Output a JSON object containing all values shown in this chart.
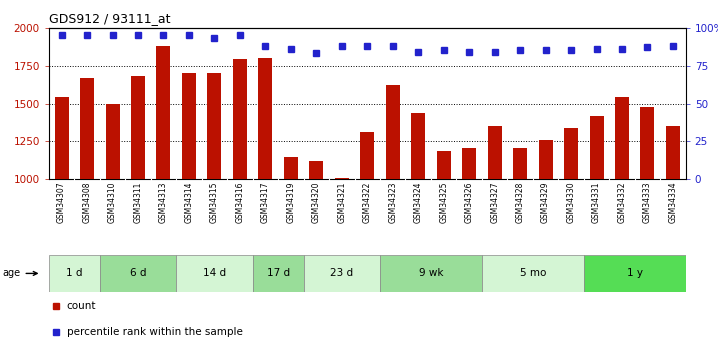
{
  "title": "GDS912 / 93111_at",
  "samples": [
    "GSM34307",
    "GSM34308",
    "GSM34310",
    "GSM34311",
    "GSM34313",
    "GSM34314",
    "GSM34315",
    "GSM34316",
    "GSM34317",
    "GSM34319",
    "GSM34320",
    "GSM34321",
    "GSM34322",
    "GSM34323",
    "GSM34324",
    "GSM34325",
    "GSM34326",
    "GSM34327",
    "GSM34328",
    "GSM34329",
    "GSM34330",
    "GSM34331",
    "GSM34332",
    "GSM34333",
    "GSM34334"
  ],
  "counts": [
    1540,
    1670,
    1500,
    1680,
    1880,
    1700,
    1700,
    1790,
    1800,
    1150,
    1120,
    1010,
    1315,
    1620,
    1435,
    1190,
    1205,
    1355,
    1205,
    1260,
    1340,
    1420,
    1545,
    1480,
    1350
  ],
  "percentiles": [
    95,
    95,
    95,
    95,
    95,
    95,
    93,
    95,
    88,
    86,
    83,
    88,
    88,
    88,
    84,
    85,
    84,
    84,
    85,
    85,
    85,
    86,
    86,
    87,
    88
  ],
  "age_groups": [
    {
      "label": "1 d",
      "start": 0,
      "end": 2,
      "color": "#d4f5d4"
    },
    {
      "label": "6 d",
      "start": 2,
      "end": 5,
      "color": "#99dd99"
    },
    {
      "label": "14 d",
      "start": 5,
      "end": 8,
      "color": "#d4f5d4"
    },
    {
      "label": "17 d",
      "start": 8,
      "end": 10,
      "color": "#99dd99"
    },
    {
      "label": "23 d",
      "start": 10,
      "end": 13,
      "color": "#d4f5d4"
    },
    {
      "label": "9 wk",
      "start": 13,
      "end": 17,
      "color": "#99dd99"
    },
    {
      "label": "5 mo",
      "start": 17,
      "end": 21,
      "color": "#d4f5d4"
    },
    {
      "label": "1 y",
      "start": 21,
      "end": 25,
      "color": "#55dd55"
    }
  ],
  "ylim_left": [
    1000,
    2000
  ],
  "ylim_right": [
    0,
    100
  ],
  "yticks_left": [
    1000,
    1250,
    1500,
    1750,
    2000
  ],
  "yticks_right": [
    0,
    25,
    50,
    75,
    100
  ],
  "bar_color": "#bb1100",
  "dot_color": "#2222cc",
  "sample_label_bg": "#cccccc",
  "age_strip_bg": "#bbbbbb",
  "legend_count_color": "#bb1100",
  "legend_pct_color": "#2222cc"
}
